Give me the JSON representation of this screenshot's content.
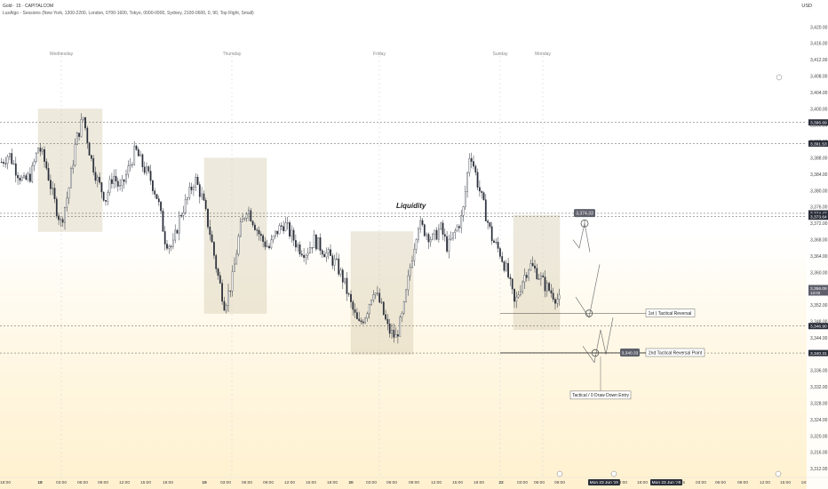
{
  "header": {
    "symbol_line": "Gold · 15 · CAPITALCOM",
    "indicator_line": "LuxAlgo - Sessions (New York, 1300-2200, London, 0700-1600, Tokyo, 0000-0900, Sydney, 2100-0600, 0, 90, Top Right, Small)",
    "currency": "USD"
  },
  "colors": {
    "up": "#26a69a",
    "down": "#ef5350",
    "candle": "#2a2e39",
    "session_fill": "#d8cfb4",
    "level_line": "#555555",
    "label_bg": "#5d606b"
  },
  "day_labels": [
    "Wednesday",
    "Thursday",
    "Friday",
    "Sunday",
    "Monday"
  ],
  "chart_data": {
    "type": "candlestick",
    "symbol": "Gold",
    "interval": "15",
    "y_ticks": [
      3420.0,
      3416.0,
      3412.0,
      3408.0,
      3404.0,
      3400.0,
      3396.0,
      3392.0,
      3388.0,
      3384.0,
      3380.0,
      3376.0,
      3372.0,
      3368.0,
      3364.0,
      3360.0,
      3356.0,
      3352.0,
      3348.0,
      3344.0,
      3340.0,
      3336.0,
      3332.0,
      3328.0,
      3324.0,
      3320.0,
      3316.0,
      3312.0
    ],
    "ylim": [
      3310.0,
      3424.0
    ],
    "x_ticks": [
      "18:00",
      "18",
      "03:00",
      "06:00",
      "09:00",
      "12:00",
      "15:00",
      "18:00",
      "19",
      "03:00",
      "06:00",
      "09:00",
      "12:00",
      "15:00",
      "18:00",
      "20",
      "03:00",
      "06:00",
      "09:00",
      "12:00",
      "15:00",
      "18:00",
      "22",
      "03:00",
      "06:00",
      "09:00",
      "Mon 23 Jun '25",
      "13:00",
      "18:00",
      "Mon 23 Jun '25",
      "22:15",
      "03:00",
      "06:00",
      "09:00",
      "12:00",
      "15:00",
      "18:"
    ],
    "price_path": [
      3387,
      3389,
      3385,
      3382,
      3384,
      3391,
      3386,
      3378,
      3372,
      3380,
      3392,
      3398,
      3388,
      3382,
      3378,
      3384,
      3380,
      3385,
      3390,
      3386,
      3383,
      3378,
      3368,
      3366,
      3374,
      3378,
      3383,
      3378,
      3370,
      3360,
      3352,
      3358,
      3370,
      3376,
      3372,
      3368,
      3366,
      3370,
      3372,
      3369,
      3366,
      3365,
      3368,
      3366,
      3364,
      3362,
      3358,
      3352,
      3347,
      3350,
      3356,
      3352,
      3346,
      3344,
      3350,
      3362,
      3372,
      3370,
      3368,
      3371,
      3366,
      3370,
      3374,
      3390,
      3382,
      3375,
      3368,
      3365,
      3360,
      3352,
      3358,
      3362,
      3360,
      3357,
      3355,
      3353
    ],
    "levels": [
      {
        "price": 3396.69,
        "label": "3,396.69"
      },
      {
        "price": 3391.53,
        "label": "3,391.53"
      },
      {
        "price": 3374.47,
        "label": "3,374.47"
      },
      {
        "price": 3373.64,
        "label": "3,373.64"
      },
      {
        "price": 3346.9,
        "label": "3,346.90"
      },
      {
        "price": 3340.31,
        "label": "3,340.31"
      }
    ],
    "current_price": {
      "price": 3356.09,
      "label": "3,356.09",
      "countdown": "13:02"
    },
    "sessions": [
      {
        "from": 43,
        "to": 115,
        "high": 3400,
        "low": 3370
      },
      {
        "from": 230,
        "to": 300,
        "high": 3388,
        "low": 3350
      },
      {
        "from": 395,
        "to": 465,
        "high": 3370,
        "low": 3340
      },
      {
        "from": 578,
        "to": 630,
        "high": 3374,
        "low": 3346
      }
    ],
    "annotations": {
      "liquidity": "Liquidity",
      "reversal_1": "1st ) Tactical Reversal",
      "reversal_2": "2nd Tactical Reversal Point",
      "entry": "Tactical / 0 Draw Down Entry",
      "target_label": "3,374.33",
      "target_price": 3374.33,
      "second_point_label": "3,340.33",
      "second_point_price": 3340.33,
      "first_reversal_price": 3350.0
    }
  }
}
